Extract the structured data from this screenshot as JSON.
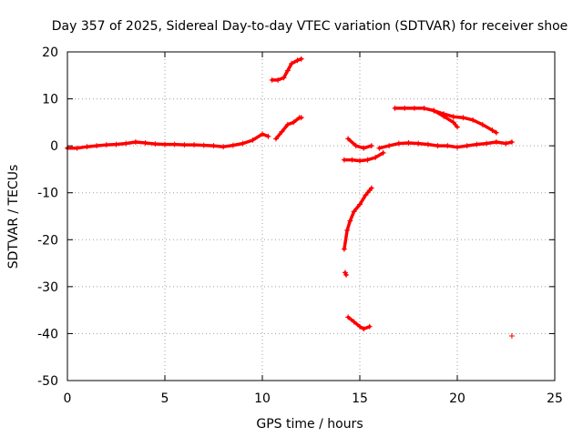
{
  "chart_data": {
    "type": "scatter",
    "title": "Day 357 of 2025, Sidereal Day-to-day VTEC variation (SDTVAR) for receiver shoe",
    "xlabel": "GPS time / hours",
    "ylabel": "SDTVAR / TECUs",
    "xlim": [
      0,
      25
    ],
    "ylim": [
      -50,
      20
    ],
    "x_ticks": [
      0,
      5,
      10,
      15,
      20,
      25
    ],
    "y_ticks": [
      -50,
      -40,
      -30,
      -20,
      -10,
      0,
      10,
      20
    ],
    "grid": true,
    "marker": "+",
    "series_color": "#ff0000",
    "series": [
      {
        "name": "main-baseline",
        "x": [
          0,
          0.5,
          1,
          1.5,
          2,
          2.5,
          3,
          3.5,
          4,
          4.5,
          5,
          5.5,
          6,
          6.5,
          7,
          7.5,
          8,
          8.5,
          9,
          9.5,
          10,
          10.3
        ],
        "y": [
          -0.5,
          -0.5,
          -0.2,
          0,
          0.2,
          0.3,
          0.5,
          0.8,
          0.6,
          0.4,
          0.3,
          0.3,
          0.2,
          0.2,
          0.1,
          0,
          -0.2,
          0.1,
          0.5,
          1.2,
          2.5,
          2.0
        ]
      },
      {
        "name": "noon-rise",
        "x": [
          10.7,
          11.0,
          11.3,
          11.6,
          11.9,
          12.0
        ],
        "y": [
          1.5,
          3,
          4.5,
          5,
          6,
          6
        ]
      },
      {
        "name": "upper-segment-a",
        "x": [
          10.5,
          10.8,
          11.1,
          11.3,
          11.5,
          11.8,
          12.0
        ],
        "y": [
          14,
          14,
          14.5,
          16,
          17.5,
          18.2,
          18.5
        ]
      },
      {
        "name": "pass-14h-upper",
        "x": [
          14.4,
          14.8,
          15.2,
          15.6
        ],
        "y": [
          1.5,
          0,
          -0.5,
          0
        ]
      },
      {
        "name": "pass-14h-lower",
        "x": [
          14.2,
          14.6,
          15.0,
          15.4,
          15.8,
          16.2
        ],
        "y": [
          -3,
          -3,
          -3.2,
          -3,
          -2.5,
          -1.5
        ]
      },
      {
        "name": "drop-15h",
        "x": [
          14.2,
          14.35,
          14.5,
          14.7,
          15.0,
          15.3,
          15.5,
          15.6
        ],
        "y": [
          -22,
          -18,
          -16,
          -14,
          -12.5,
          -10.5,
          -9.5,
          -9
        ]
      },
      {
        "name": "isolated-27",
        "x": [
          14.25,
          14.3
        ],
        "y": [
          -27,
          -27.5
        ]
      },
      {
        "name": "trough-38",
        "x": [
          14.4,
          14.7,
          15.0,
          15.2,
          15.5
        ],
        "y": [
          -36.5,
          -37.5,
          -38.5,
          -39,
          -38.5
        ]
      },
      {
        "name": "evening-baseline",
        "x": [
          16.0,
          16.5,
          17.0,
          17.5,
          18.0,
          18.5,
          19.0,
          19.5,
          20.0,
          20.5,
          21.0,
          21.5,
          22.0,
          22.5,
          22.8
        ],
        "y": [
          -0.5,
          0,
          0.5,
          0.6,
          0.5,
          0.3,
          0,
          0,
          -0.3,
          0,
          0.3,
          0.5,
          0.8,
          0.5,
          0.8
        ]
      },
      {
        "name": "upper-segment-b",
        "x": [
          16.8,
          17.3,
          17.8,
          18.3,
          18.8,
          19.3,
          19.8,
          20.3,
          20.8,
          21.3,
          21.8,
          22.0
        ],
        "y": [
          8,
          8,
          8,
          8,
          7.5,
          6.8,
          6.2,
          6,
          5.5,
          4.5,
          3.3,
          2.8
        ]
      },
      {
        "name": "crossing-branch",
        "x": [
          18.8,
          19.3,
          19.8,
          20.0
        ],
        "y": [
          7.5,
          6.3,
          5,
          4
        ]
      },
      {
        "name": "isolated-point",
        "x": [
          22.8
        ],
        "y": [
          -40.5
        ]
      }
    ]
  }
}
